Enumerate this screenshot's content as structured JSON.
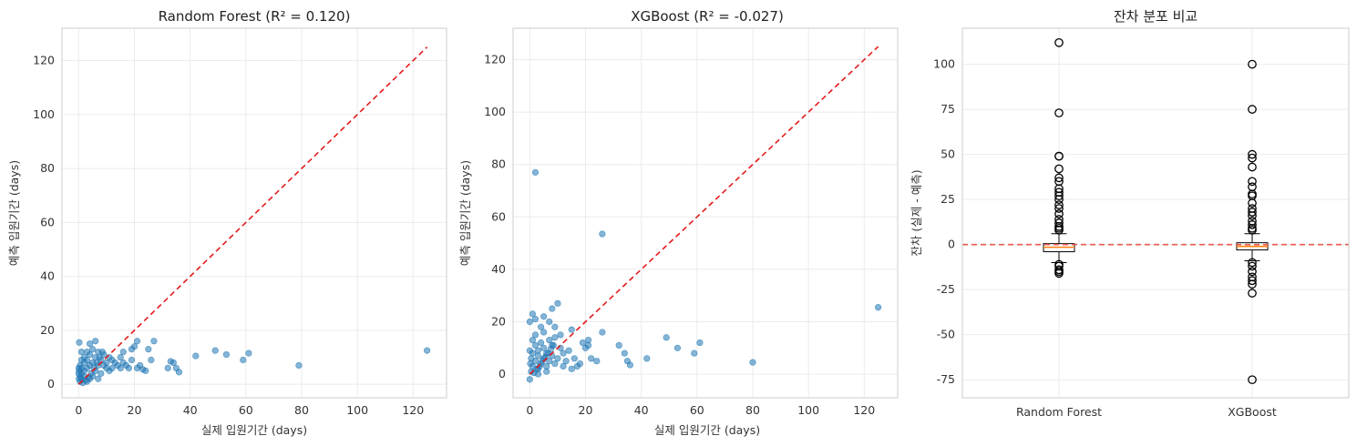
{
  "chart_data": [
    {
      "type": "scatter",
      "title": "Random Forest (R² = 0.120)",
      "xlabel": "실제 입원기간 (days)",
      "ylabel": "예측 입원기간 (days)",
      "xlim": [
        -6,
        132
      ],
      "ylim": [
        -5,
        132
      ],
      "xticks": [
        0,
        20,
        40,
        60,
        80,
        100,
        120
      ],
      "yticks": [
        0,
        20,
        40,
        60,
        80,
        100,
        120
      ],
      "grid": true,
      "point_color": "#1f77b4",
      "reference_line": {
        "from": [
          0,
          0
        ],
        "to": [
          125,
          125
        ],
        "color": "#e31a1c",
        "style": "dashed"
      },
      "points": [
        [
          79,
          7
        ],
        [
          125,
          12.5
        ],
        [
          49,
          12.5
        ],
        [
          53,
          11
        ],
        [
          61,
          11.5
        ],
        [
          59,
          9
        ],
        [
          42,
          10.5
        ],
        [
          35,
          6
        ],
        [
          36,
          4.5
        ],
        [
          33,
          8.5
        ],
        [
          34,
          8
        ],
        [
          32,
          6
        ],
        [
          27,
          16
        ],
        [
          23,
          5.5
        ],
        [
          24,
          5
        ],
        [
          22,
          7
        ],
        [
          21,
          6
        ],
        [
          21,
          16
        ],
        [
          20,
          14
        ],
        [
          19,
          13
        ],
        [
          18,
          6
        ],
        [
          17,
          7
        ],
        [
          16,
          8
        ],
        [
          15,
          6
        ],
        [
          14,
          7
        ],
        [
          13,
          8
        ],
        [
          12,
          9
        ],
        [
          12,
          6
        ],
        [
          11,
          10
        ],
        [
          11,
          5
        ],
        [
          10,
          8
        ],
        [
          10,
          6
        ],
        [
          9,
          7
        ],
        [
          9,
          11
        ],
        [
          8,
          4
        ],
        [
          8,
          9
        ],
        [
          7,
          7
        ],
        [
          7,
          12
        ],
        [
          7,
          2
        ],
        [
          6,
          10
        ],
        [
          6,
          5
        ],
        [
          6,
          16
        ],
        [
          5,
          8
        ],
        [
          5,
          13
        ],
        [
          5,
          3
        ],
        [
          4,
          7
        ],
        [
          4,
          11
        ],
        [
          4,
          15
        ],
        [
          4,
          2
        ],
        [
          3,
          6
        ],
        [
          3,
          9
        ],
        [
          3,
          12
        ],
        [
          3,
          1
        ],
        [
          2,
          5
        ],
        [
          2,
          8
        ],
        [
          2,
          10
        ],
        [
          2,
          3
        ],
        [
          1,
          4
        ],
        [
          1,
          6
        ],
        [
          1,
          9
        ],
        [
          1,
          2
        ],
        [
          1,
          12
        ],
        [
          0.5,
          3
        ],
        [
          0.5,
          7
        ],
        [
          0.5,
          1
        ],
        [
          0.2,
          5
        ],
        [
          0.2,
          15.5
        ],
        [
          0.1,
          2
        ],
        [
          0,
          4
        ],
        [
          0,
          6
        ],
        [
          1.5,
          0.5
        ],
        [
          2.5,
          1.5
        ],
        [
          3.5,
          2.5
        ],
        [
          4.5,
          4
        ],
        [
          5.5,
          6
        ],
        [
          6.5,
          8
        ],
        [
          7.5,
          10
        ],
        [
          8.5,
          12
        ],
        [
          26,
          9
        ],
        [
          25,
          13
        ],
        [
          15,
          10
        ],
        [
          16,
          12
        ],
        [
          19,
          9
        ]
      ]
    },
    {
      "type": "scatter",
      "title": "XGBoost (R² = -0.027)",
      "xlabel": "실제 입원기간 (days)",
      "ylabel": "예측 입원기간 (days)",
      "xlim": [
        -6,
        132
      ],
      "ylim": [
        -9,
        132
      ],
      "xticks": [
        0,
        20,
        40,
        60,
        80,
        100,
        120
      ],
      "yticks": [
        0,
        20,
        40,
        60,
        80,
        100,
        120
      ],
      "grid": true,
      "point_color": "#1f77b4",
      "reference_line": {
        "from": [
          0,
          0
        ],
        "to": [
          125,
          125
        ],
        "color": "#e31a1c",
        "style": "dashed"
      },
      "points": [
        [
          2,
          77
        ],
        [
          26,
          53.5
        ],
        [
          125,
          25.5
        ],
        [
          10,
          27
        ],
        [
          8,
          25
        ],
        [
          5,
          22
        ],
        [
          1,
          23
        ],
        [
          0,
          20
        ],
        [
          2,
          21
        ],
        [
          80,
          4.5
        ],
        [
          61,
          12
        ],
        [
          59,
          8
        ],
        [
          53,
          10
        ],
        [
          49,
          14
        ],
        [
          42,
          6
        ],
        [
          35,
          5
        ],
        [
          36,
          3.5
        ],
        [
          34,
          8
        ],
        [
          32,
          11
        ],
        [
          26,
          16
        ],
        [
          24,
          5
        ],
        [
          22,
          6
        ],
        [
          21,
          13
        ],
        [
          21,
          11
        ],
        [
          20,
          10
        ],
        [
          19,
          12
        ],
        [
          18,
          4
        ],
        [
          17,
          3
        ],
        [
          16,
          6
        ],
        [
          15,
          17
        ],
        [
          14,
          9
        ],
        [
          13,
          5
        ],
        [
          12,
          8
        ],
        [
          12,
          3
        ],
        [
          11,
          10
        ],
        [
          10,
          6
        ],
        [
          9,
          4
        ],
        [
          9,
          14
        ],
        [
          8,
          7
        ],
        [
          8,
          11
        ],
        [
          7,
          5
        ],
        [
          7,
          13
        ],
        [
          6,
          8
        ],
        [
          6,
          3
        ],
        [
          5,
          10
        ],
        [
          5,
          16
        ],
        [
          5,
          6
        ],
        [
          4,
          4
        ],
        [
          4,
          12
        ],
        [
          4,
          18
        ],
        [
          3,
          7
        ],
        [
          3,
          9
        ],
        [
          3,
          2
        ],
        [
          2,
          5
        ],
        [
          2,
          11
        ],
        [
          2,
          15
        ],
        [
          1,
          3
        ],
        [
          1,
          8
        ],
        [
          1,
          13
        ],
        [
          0.5,
          1
        ],
        [
          0.5,
          6
        ],
        [
          0,
          -2
        ],
        [
          0.2,
          4
        ],
        [
          0,
          9
        ],
        [
          3,
          0
        ],
        [
          6,
          1
        ],
        [
          7,
          20
        ],
        [
          9,
          18
        ],
        [
          11,
          15
        ],
        [
          15,
          2
        ],
        [
          1.5,
          0.5
        ],
        [
          2.5,
          2
        ],
        [
          3.5,
          3
        ],
        [
          4.5,
          5
        ],
        [
          5.5,
          6.5
        ],
        [
          6.5,
          8
        ],
        [
          7.5,
          9.5
        ],
        [
          8.5,
          11
        ]
      ]
    },
    {
      "type": "boxplot",
      "title": "잔차 분포 비교",
      "ylabel": "잔차 (실제 - 예측)",
      "categories": [
        "Random Forest",
        "XGBoost"
      ],
      "ylim": [
        -85,
        120
      ],
      "yticks": [
        -75,
        -50,
        -25,
        0,
        25,
        50,
        75,
        100
      ],
      "grid": true,
      "zero_line": {
        "y": 0,
        "color": "#e8584f",
        "style": "dashed"
      },
      "median_color": "#ff7f0e",
      "boxes": [
        {
          "name": "Random Forest",
          "q1": -4,
          "median": -1.5,
          "q3": 0.5,
          "whisker_low": -10,
          "whisker_high": 6,
          "outliers": [
            112,
            73,
            49,
            49,
            42,
            37,
            35,
            31,
            29,
            27,
            25,
            22,
            20,
            17,
            14,
            12,
            10,
            9,
            8,
            -11,
            -12,
            -14,
            -15,
            -16
          ]
        },
        {
          "name": "XGBoost",
          "q1": -3,
          "median": -1,
          "q3": 1,
          "whisker_low": -9,
          "whisker_high": 6,
          "outliers": [
            100,
            75,
            50,
            48,
            43,
            35,
            32,
            28,
            27,
            23,
            20,
            18,
            16,
            13,
            11,
            9,
            8,
            -10,
            -12,
            -15,
            -18,
            -20,
            -22,
            -27,
            -75
          ]
        }
      ]
    }
  ]
}
